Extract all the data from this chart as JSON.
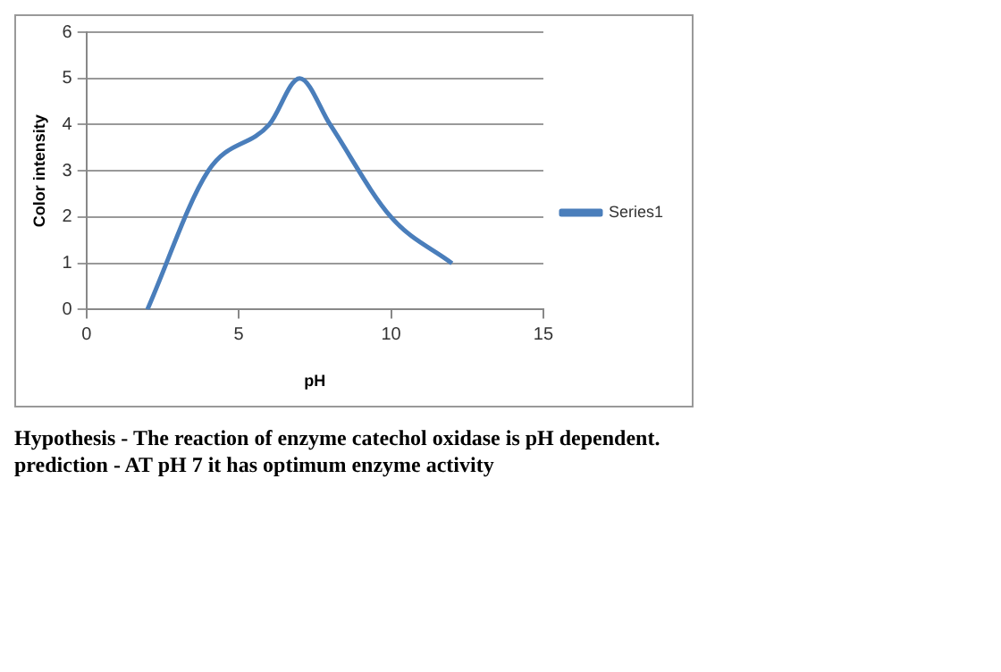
{
  "chart_data": {
    "type": "line",
    "xlabel": "pH",
    "ylabel": "Color intensity",
    "x": [
      2,
      4,
      6,
      7,
      8,
      10,
      12
    ],
    "series": [
      {
        "name": "Series1",
        "color": "#4a7ebb",
        "values": [
          0,
          3,
          4,
          5,
          4,
          2,
          1
        ]
      }
    ],
    "xlim": [
      0,
      15
    ],
    "xticks": [
      0,
      5,
      10,
      15
    ],
    "ylim": [
      0,
      6
    ],
    "yticks": [
      0,
      1,
      2,
      3,
      4,
      5,
      6
    ],
    "grid": "y",
    "legend": "right",
    "marker": "none",
    "annotations": [
      "Hypothesis - The reaction of enzyme catechol oxidase is pH dependent.",
      "prediction - AT pH 7 it has optimum enzyme activity"
    ]
  }
}
